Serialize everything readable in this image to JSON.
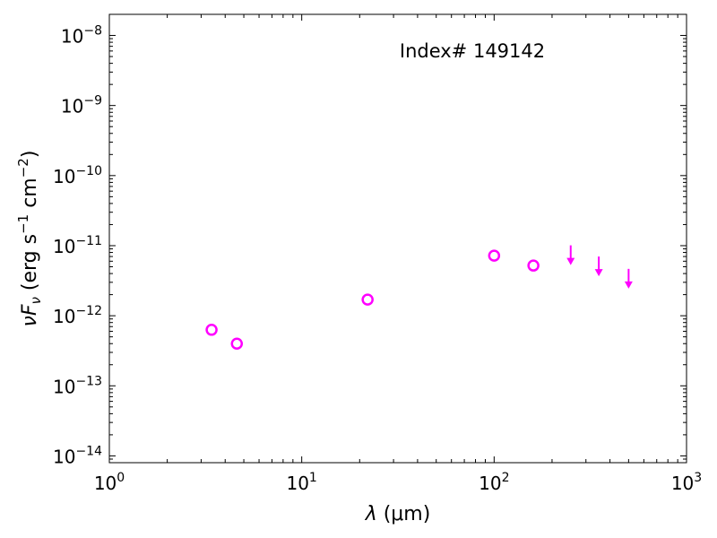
{
  "chart_data": {
    "type": "scatter",
    "title": "",
    "annotation": "Index# 149142",
    "xlabel": {
      "lambda": "λ",
      "unit": " (μm)"
    },
    "ylabel": {
      "nu": "ν",
      "F": "F",
      "sub": "ν",
      "text1": " (erg s",
      "exp1": "−1",
      "text2": " cm",
      "exp2": "−2",
      "text3": ")"
    },
    "x_scale": "log",
    "y_scale": "log",
    "xlim": [
      1,
      1000
    ],
    "ylim": [
      8e-15,
      2e-08
    ],
    "x_ticks": [
      {
        "value": 1,
        "base": "10",
        "exp": "0"
      },
      {
        "value": 10,
        "base": "10",
        "exp": "1"
      },
      {
        "value": 100,
        "base": "10",
        "exp": "2"
      },
      {
        "value": 1000,
        "base": "10",
        "exp": "3"
      }
    ],
    "y_ticks": [
      {
        "value": 1e-14,
        "base": "10",
        "exp": "−14"
      },
      {
        "value": 1e-13,
        "base": "10",
        "exp": "−13"
      },
      {
        "value": 1e-12,
        "base": "10",
        "exp": "−12"
      },
      {
        "value": 1e-11,
        "base": "10",
        "exp": "−11"
      },
      {
        "value": 1e-10,
        "base": "10",
        "exp": "−10"
      },
      {
        "value": 1e-09,
        "base": "10",
        "exp": "−9"
      },
      {
        "value": 1e-08,
        "base": "10",
        "exp": "−8"
      }
    ],
    "grid": false,
    "color": "#ff00ff",
    "series": [
      {
        "marker": "open-circle",
        "points": [
          {
            "x": 3.4,
            "y": 6.3e-13
          },
          {
            "x": 4.6,
            "y": 4e-13
          },
          {
            "x": 22,
            "y": 1.7e-12
          },
          {
            "x": 100,
            "y": 7.2e-12
          },
          {
            "x": 160,
            "y": 5.2e-12
          }
        ]
      },
      {
        "marker": "upper-limit-arrow",
        "points": [
          {
            "x": 250,
            "y": 6.5e-12
          },
          {
            "x": 350,
            "y": 4.5e-12
          },
          {
            "x": 500,
            "y": 3e-12
          }
        ]
      }
    ]
  }
}
